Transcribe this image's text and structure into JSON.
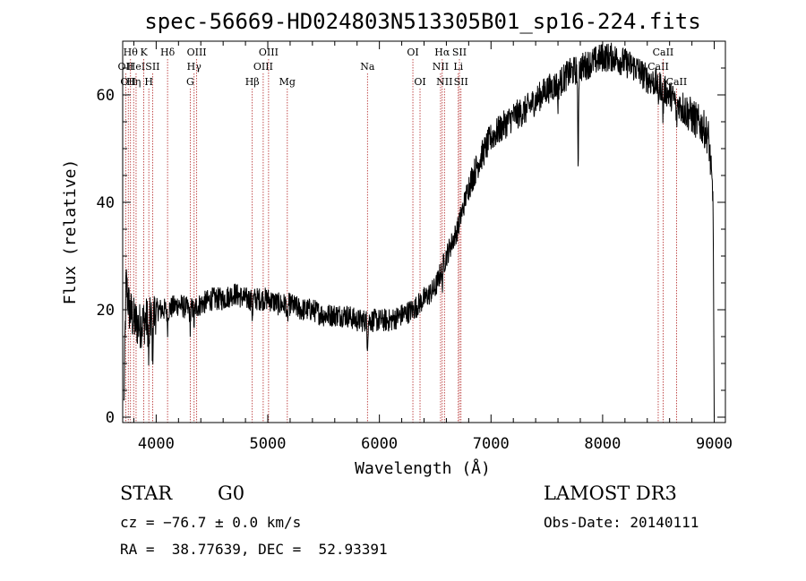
{
  "chart_data": {
    "type": "line",
    "title": "spec-56669-HD024803N513305B01_sp16-224.fits",
    "xlabel": "Wavelength (Å)",
    "ylabel": "Flux (relative)",
    "xlim": [
      3700,
      9100
    ],
    "ylim": [
      -1,
      70
    ],
    "x_ticks": [
      4000,
      5000,
      6000,
      7000,
      8000,
      9000
    ],
    "x_tick_labels": [
      "4000",
      "5000",
      "6000",
      "7000",
      "8000",
      "9000"
    ],
    "y_ticks": [
      0,
      20,
      40,
      60
    ],
    "y_tick_labels": [
      "0",
      "20",
      "40",
      "60"
    ],
    "grid": false,
    "spectrum_anchor_points": {
      "x": [
        3710,
        3730,
        3760,
        3800,
        3850,
        3900,
        3950,
        4000,
        4100,
        4200,
        4300,
        4400,
        4500,
        4600,
        4700,
        4800,
        4900,
        5000,
        5100,
        5200,
        5300,
        5400,
        5500,
        5600,
        5700,
        5800,
        5900,
        6000,
        6100,
        6200,
        6300,
        6400,
        6500,
        6550,
        6600,
        6700,
        6800,
        6900,
        7000,
        7100,
        7200,
        7300,
        7400,
        7500,
        7600,
        7700,
        7800,
        7900,
        8000,
        8100,
        8200,
        8300,
        8400,
        8500,
        8600,
        8700,
        8800,
        8900,
        8950,
        8990,
        9000
      ],
      "y": [
        2,
        25,
        20,
        18,
        17,
        18,
        18,
        20,
        20,
        21,
        20,
        21,
        22,
        22,
        23,
        22,
        22,
        22,
        21,
        21,
        20,
        20,
        19,
        19,
        19,
        18,
        18,
        18,
        18,
        19,
        20,
        22,
        24,
        27,
        30,
        35,
        43,
        48,
        52,
        54,
        56,
        57,
        59,
        61,
        62,
        64,
        65,
        66,
        67,
        67,
        66,
        65,
        63,
        62,
        60,
        58,
        56,
        54,
        52,
        40,
        0
      ]
    },
    "absorption_features": [
      {
        "x": 3934,
        "depth": 8
      },
      {
        "x": 3968,
        "depth": 6
      },
      {
        "x": 4102,
        "depth": 3
      },
      {
        "x": 4305,
        "depth": 3
      },
      {
        "x": 4340,
        "depth": 3
      },
      {
        "x": 4861,
        "depth": 3
      },
      {
        "x": 5175,
        "depth": 4
      },
      {
        "x": 5893,
        "depth": 4
      },
      {
        "x": 6563,
        "depth": 3
      },
      {
        "x": 7600,
        "depth": 3
      },
      {
        "x": 7780,
        "depth": 18
      },
      {
        "x": 8498,
        "depth": 3
      },
      {
        "x": 8542,
        "depth": 5
      },
      {
        "x": 8662,
        "depth": 4
      }
    ],
    "reference_lines": [
      {
        "x": 3727,
        "label": "OII",
        "row": 2
      },
      {
        "x": 3750,
        "label": "OII",
        "row": 3
      },
      {
        "x": 3770,
        "label": "Hθ",
        "row": 1
      },
      {
        "x": 3798,
        "label": "Hη",
        "row": 3
      },
      {
        "x": 3820,
        "label": "HeI",
        "row": 2
      },
      {
        "x": 3889,
        "label": "K",
        "row": 1
      },
      {
        "x": 3934,
        "label": "H",
        "row": 3
      },
      {
        "x": 3968,
        "label": "SII",
        "row": 2
      },
      {
        "x": 4102,
        "label": "Hδ",
        "row": 1
      },
      {
        "x": 4305,
        "label": "G",
        "row": 3
      },
      {
        "x": 4340,
        "label": "Hγ",
        "row": 2
      },
      {
        "x": 4363,
        "label": "OIII",
        "row": 1
      },
      {
        "x": 4861,
        "label": "Hβ",
        "row": 3
      },
      {
        "x": 4959,
        "label": "OIII",
        "row": 2
      },
      {
        "x": 5007,
        "label": "OIII",
        "row": 1
      },
      {
        "x": 5175,
        "label": "Mg",
        "row": 3
      },
      {
        "x": 5893,
        "label": "Na",
        "row": 2
      },
      {
        "x": 6300,
        "label": "OI",
        "row": 1
      },
      {
        "x": 6364,
        "label": "OI",
        "row": 3
      },
      {
        "x": 6548,
        "label": "NII",
        "row": 2
      },
      {
        "x": 6563,
        "label": "Hα",
        "row": 1
      },
      {
        "x": 6583,
        "label": "NII",
        "row": 3
      },
      {
        "x": 6707,
        "label": "Li",
        "row": 2
      },
      {
        "x": 6717,
        "label": "SII",
        "row": 1
      },
      {
        "x": 6731,
        "label": "SII",
        "row": 3
      },
      {
        "x": 8498,
        "label": "CaII",
        "row": 2
      },
      {
        "x": 8542,
        "label": "CaII",
        "row": 1
      },
      {
        "x": 8662,
        "label": "CaII",
        "row": 3
      }
    ]
  },
  "info": {
    "class_label": "STAR",
    "subclass": "G0",
    "survey": "LAMOST DR3",
    "redshift_line": "cz = −76.7 ± 0.0 km/s",
    "obs_date": "Obs-Date: 20140111",
    "coords": "RA =  38.77639, DEC =  52.93391"
  },
  "colors": {
    "spectrum": "#000000",
    "reference_line": "#b22222",
    "axis": "#000000",
    "background": "#ffffff"
  }
}
